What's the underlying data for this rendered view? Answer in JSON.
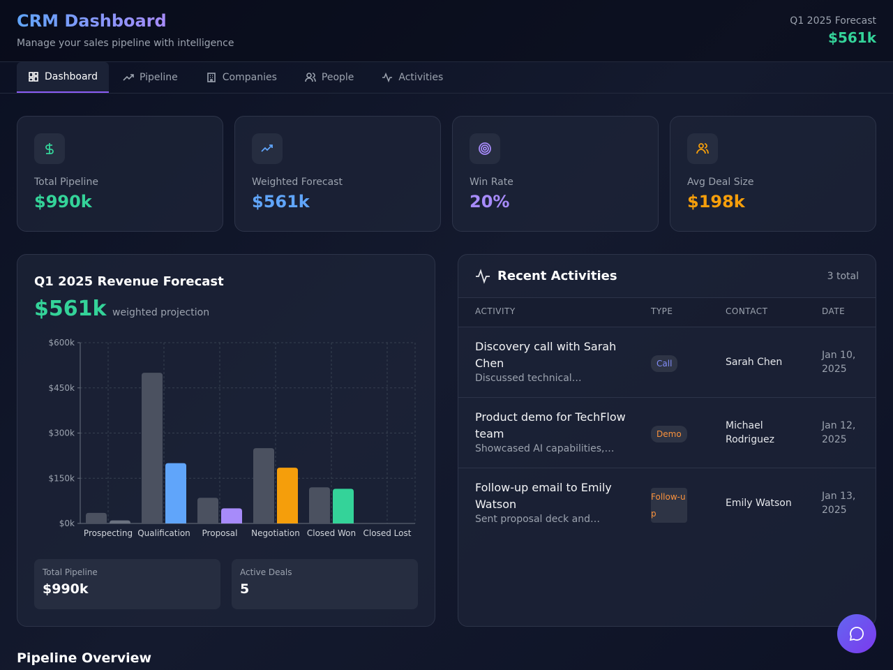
{
  "header": {
    "title": "CRM Dashboard",
    "subtitle": "Manage your sales pipeline with intelligence",
    "forecast_label": "Q1 2025 Forecast",
    "forecast_value": "$561k"
  },
  "nav": [
    "Dashboard",
    "Pipeline",
    "Companies",
    "People",
    "Activities"
  ],
  "stats": [
    {
      "label": "Total Pipeline",
      "value": "$990k"
    },
    {
      "label": "Weighted Forecast",
      "value": "$561k"
    },
    {
      "label": "Win Rate",
      "value": "20%"
    },
    {
      "label": "Avg Deal Size",
      "value": "$198k"
    }
  ],
  "forecast": {
    "title": "Q1 2025 Revenue Forecast",
    "value": "$561k",
    "caption": "weighted projection",
    "summary": [
      {
        "label": "Total Pipeline",
        "value": "$990k"
      },
      {
        "label": "Active Deals",
        "value": "5"
      }
    ]
  },
  "chart_data": {
    "type": "bar",
    "categories": [
      "Prospecting",
      "Qualification",
      "Proposal",
      "Negotiation",
      "Closed Won",
      "Closed Lost"
    ],
    "series": [
      {
        "color": "#4b5160",
        "values": [
          35,
          500,
          85,
          250,
          120,
          0
        ]
      },
      {
        "colors": [
          "#6b7280",
          "#60a5fa",
          "#a78bfa",
          "#f59e0b",
          "#34d399",
          "#f87171"
        ],
        "values": [
          10,
          200,
          50,
          185,
          115,
          0
        ]
      }
    ],
    "ylim": [
      0,
      600
    ],
    "yticks": [
      {
        "value": 0,
        "label": "$0k"
      },
      {
        "value": 150,
        "label": "$150k"
      },
      {
        "value": 300,
        "label": "$300k"
      },
      {
        "value": 450,
        "label": "$450k"
      },
      {
        "value": 600,
        "label": "$600k"
      }
    ],
    "grid": true
  },
  "activities": {
    "title": "Recent Activities",
    "count": "3 total",
    "columns": [
      "ACTIVITY",
      "TYPE",
      "CONTACT",
      "DATE"
    ],
    "rows": [
      {
        "activity": "Discovery call with Sarah Chen",
        "note": "Discussed technical…",
        "type": "Call",
        "contact": "Sarah Chen",
        "date": "Jan 10, 2025"
      },
      {
        "activity": "Product demo for TechFlow team",
        "note": "Showcased AI capabilities,…",
        "type": "Demo",
        "contact": "Michael Rodriguez",
        "date": "Jan 12, 2025"
      },
      {
        "activity": "Follow-up email to Emily Watson",
        "note": "Sent proposal deck and…",
        "type": "Follow-up",
        "contact": "Emily Watson",
        "date": "Jan 13, 2025"
      }
    ]
  },
  "section_title": "Pipeline Overview"
}
